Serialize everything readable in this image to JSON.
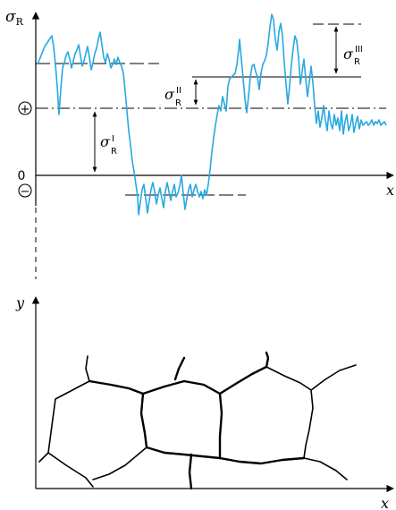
{
  "labels": {
    "sigma": "σ",
    "sub_R": "R",
    "sup_I": "I",
    "sup_II": "II",
    "sup_III": "III",
    "plus": "+",
    "minus": "−",
    "zero": "0",
    "x_top": "x",
    "y_axis": "y",
    "x_bottom": "x"
  },
  "colors": {
    "signal": "#29a8e0",
    "ink": "#000000"
  }
}
